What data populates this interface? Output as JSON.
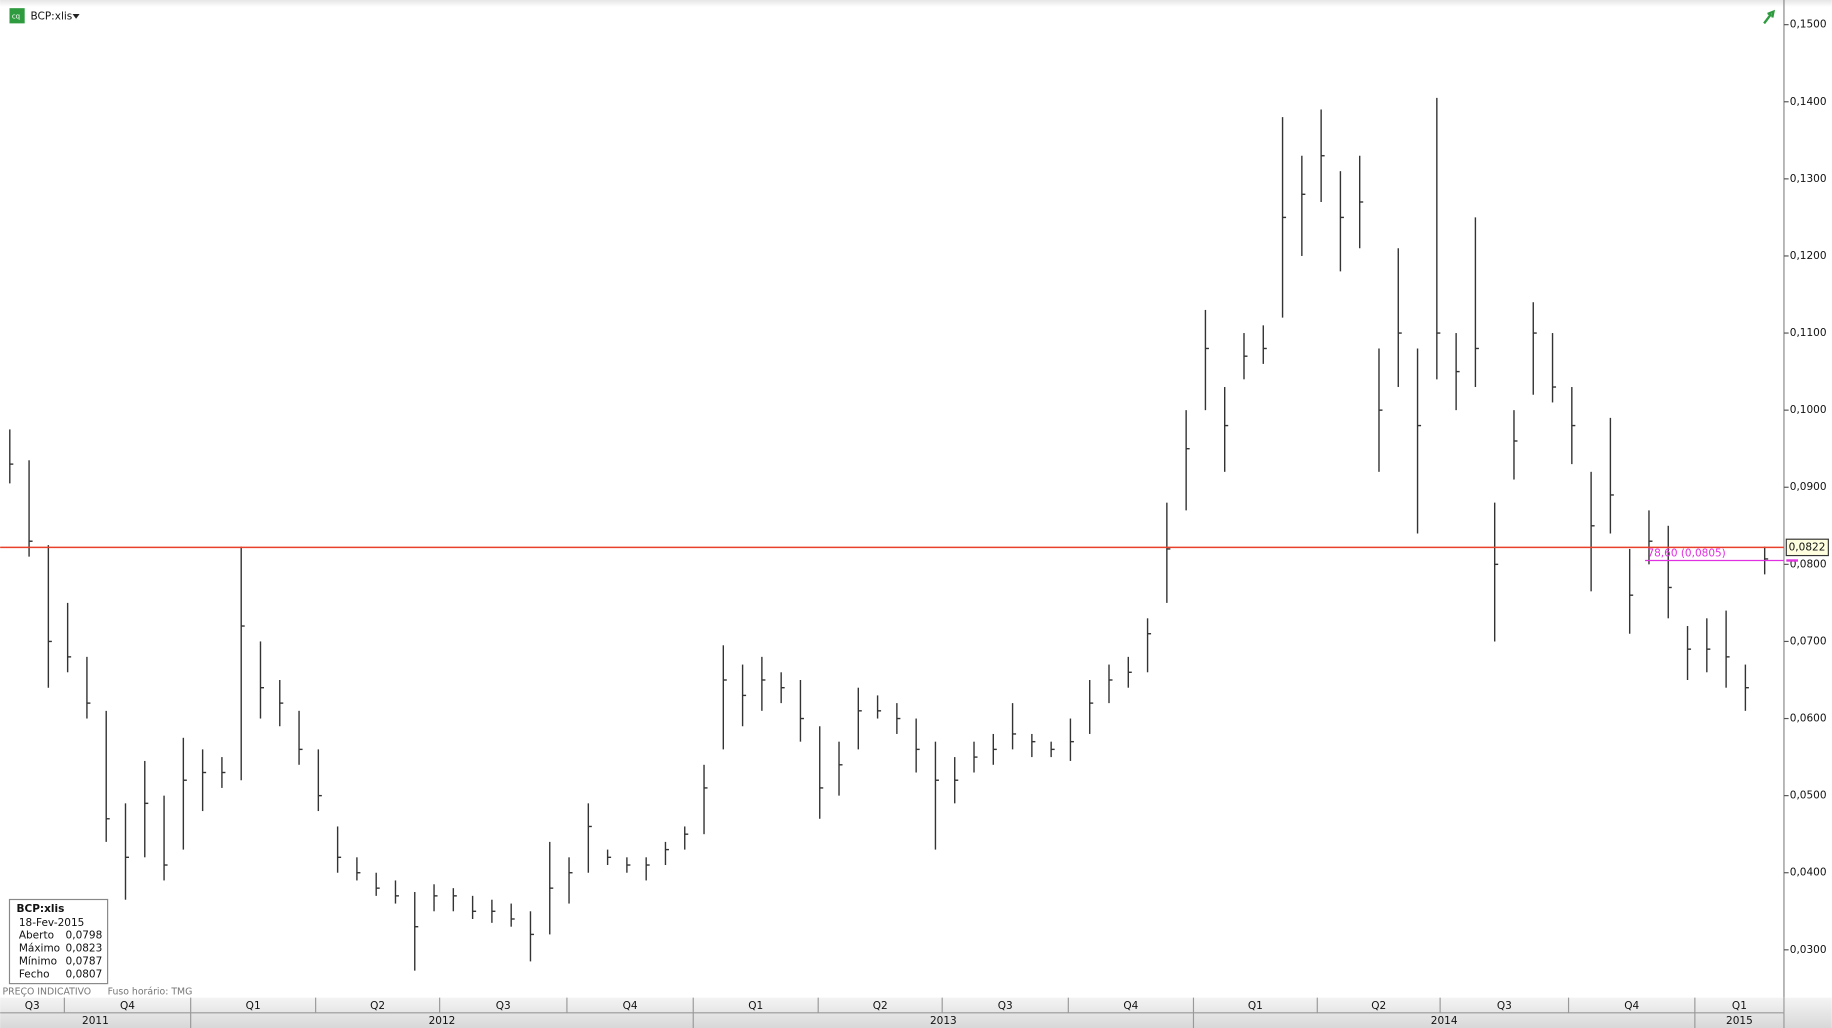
{
  "chart_data": {
    "type": "ohlc",
    "symbol": "BCP:xlis",
    "footer": "PREÇO INDICATIVO",
    "timezone": "Fuso horário: TMG",
    "xlim": [
      0,
      92.5
    ],
    "ylim": [
      0.0238,
      0.1532
    ],
    "yticks": [
      {
        "value": 0.03,
        "label": "0,0300"
      },
      {
        "value": 0.04,
        "label": "0,0400"
      },
      {
        "value": 0.05,
        "label": "0,0500"
      },
      {
        "value": 0.06,
        "label": "0,0600"
      },
      {
        "value": 0.07,
        "label": "0,0700"
      },
      {
        "value": 0.08,
        "label": "0,0800"
      },
      {
        "value": 0.09,
        "label": "0,0900"
      },
      {
        "value": 0.1,
        "label": "0,1000"
      },
      {
        "value": 0.11,
        "label": "0,1100"
      },
      {
        "value": 0.12,
        "label": "0,1200"
      },
      {
        "value": 0.13,
        "label": "0,1300"
      },
      {
        "value": 0.14,
        "label": "0,1400"
      },
      {
        "value": 0.15,
        "label": "0,1500"
      }
    ],
    "color": "#333333",
    "high": [
      0.0975,
      0.0935,
      0.0825,
      0.075,
      0.068,
      0.061,
      0.049,
      0.0545,
      0.05,
      0.0575,
      0.056,
      0.055,
      0.0823,
      0.07,
      0.065,
      0.061,
      0.056,
      0.046,
      0.042,
      0.04,
      0.039,
      0.0375,
      0.0385,
      0.038,
      0.037,
      0.0365,
      0.036,
      0.035,
      0.044,
      0.042,
      0.049,
      0.043,
      0.042,
      0.042,
      0.044,
      0.046,
      0.054,
      0.0695,
      0.067,
      0.068,
      0.066,
      0.065,
      0.059,
      0.057,
      0.064,
      0.063,
      0.062,
      0.06,
      0.057,
      0.055,
      0.057,
      0.058,
      0.062,
      0.058,
      0.057,
      0.06,
      0.065,
      0.067,
      0.068,
      0.073,
      0.088,
      0.1,
      0.113,
      0.103,
      0.11,
      0.111,
      0.138,
      0.133,
      0.139,
      0.131,
      0.133,
      0.108,
      0.121,
      0.108,
      0.1405,
      0.11,
      0.125,
      0.088,
      0.1,
      0.114,
      0.11,
      0.103,
      0.092,
      0.099,
      0.082,
      0.087,
      0.085,
      0.072,
      0.073,
      0.074,
      0.067,
      0.0823
    ],
    "low": [
      0.0905,
      0.081,
      0.064,
      0.066,
      0.06,
      0.044,
      0.0365,
      0.042,
      0.039,
      0.043,
      0.048,
      0.051,
      0.052,
      0.06,
      0.059,
      0.054,
      0.048,
      0.04,
      0.039,
      0.037,
      0.036,
      0.0273,
      0.035,
      0.035,
      0.034,
      0.0335,
      0.033,
      0.0285,
      0.032,
      0.036,
      0.04,
      0.041,
      0.04,
      0.039,
      0.041,
      0.043,
      0.045,
      0.056,
      0.059,
      0.061,
      0.062,
      0.057,
      0.047,
      0.05,
      0.056,
      0.06,
      0.058,
      0.053,
      0.043,
      0.049,
      0.053,
      0.054,
      0.056,
      0.055,
      0.055,
      0.0545,
      0.058,
      0.062,
      0.064,
      0.066,
      0.075,
      0.087,
      0.1,
      0.092,
      0.104,
      0.106,
      0.112,
      0.12,
      0.127,
      0.118,
      0.121,
      0.092,
      0.103,
      0.084,
      0.104,
      0.1,
      0.103,
      0.07,
      0.091,
      0.102,
      0.101,
      0.093,
      0.0765,
      0.084,
      0.071,
      0.08,
      0.073,
      0.065,
      0.066,
      0.064,
      0.061,
      0.0787
    ],
    "close": [
      0.093,
      0.083,
      0.07,
      0.068,
      0.062,
      0.047,
      0.042,
      0.049,
      0.041,
      0.052,
      0.053,
      0.053,
      0.072,
      0.064,
      0.062,
      0.056,
      0.05,
      0.042,
      0.04,
      0.038,
      0.037,
      0.033,
      0.037,
      0.037,
      0.035,
      0.035,
      0.034,
      0.032,
      0.038,
      0.04,
      0.046,
      0.042,
      0.041,
      0.041,
      0.043,
      0.045,
      0.051,
      0.065,
      0.063,
      0.065,
      0.064,
      0.06,
      0.051,
      0.054,
      0.061,
      0.061,
      0.06,
      0.056,
      0.052,
      0.052,
      0.055,
      0.056,
      0.058,
      0.057,
      0.056,
      0.057,
      0.062,
      0.065,
      0.066,
      0.071,
      0.082,
      0.095,
      0.108,
      0.098,
      0.107,
      0.108,
      0.125,
      0.128,
      0.133,
      0.125,
      0.127,
      0.1,
      0.11,
      0.098,
      0.11,
      0.105,
      0.108,
      0.08,
      0.096,
      0.11,
      0.103,
      0.098,
      0.085,
      0.089,
      0.076,
      0.083,
      0.077,
      0.069,
      0.069,
      0.068,
      0.064,
      0.0807
    ],
    "reference_line": {
      "value": 0.0822,
      "label": "0,0822",
      "color": "#e8402a"
    },
    "retracement": {
      "value": 0.0805,
      "label": "78,60 (0,0805)",
      "x_start": 85.3,
      "color": "#e030e0"
    },
    "quarters": [
      {
        "label": "Q3",
        "end": 3.33
      },
      {
        "label": "Q4",
        "end": 9.88
      },
      {
        "label": "Q1",
        "end": 16.36
      },
      {
        "label": "Q2",
        "end": 22.79
      },
      {
        "label": "Q3",
        "end": 29.39
      },
      {
        "label": "Q4",
        "end": 35.94
      },
      {
        "label": "Q1",
        "end": 42.42
      },
      {
        "label": "Q2",
        "end": 48.85
      },
      {
        "label": "Q3",
        "end": 55.39
      },
      {
        "label": "Q4",
        "end": 61.88
      },
      {
        "label": "Q1",
        "end": 68.3
      },
      {
        "label": "Q2",
        "end": 74.67
      },
      {
        "label": "Q3",
        "end": 81.33
      },
      {
        "label": "Q4",
        "end": 87.88
      },
      {
        "label": "Q1",
        "end": 92.5
      }
    ],
    "years": [
      {
        "label": "2011",
        "end": 9.88
      },
      {
        "label": "2012",
        "end": 35.94
      },
      {
        "label": "2013",
        "end": 61.88
      },
      {
        "label": "2014",
        "end": 87.88
      },
      {
        "label": "2015",
        "end": 92.5
      }
    ],
    "info_box": {
      "title": "BCP:xlis",
      "date": "18-Fev-2015",
      "rows": [
        [
          "Aberto",
          "0,0798"
        ],
        [
          "Máximo",
          "0,0823"
        ],
        [
          "Mínimo",
          "0,0787"
        ],
        [
          "Fecho",
          "0,0807"
        ]
      ]
    }
  }
}
